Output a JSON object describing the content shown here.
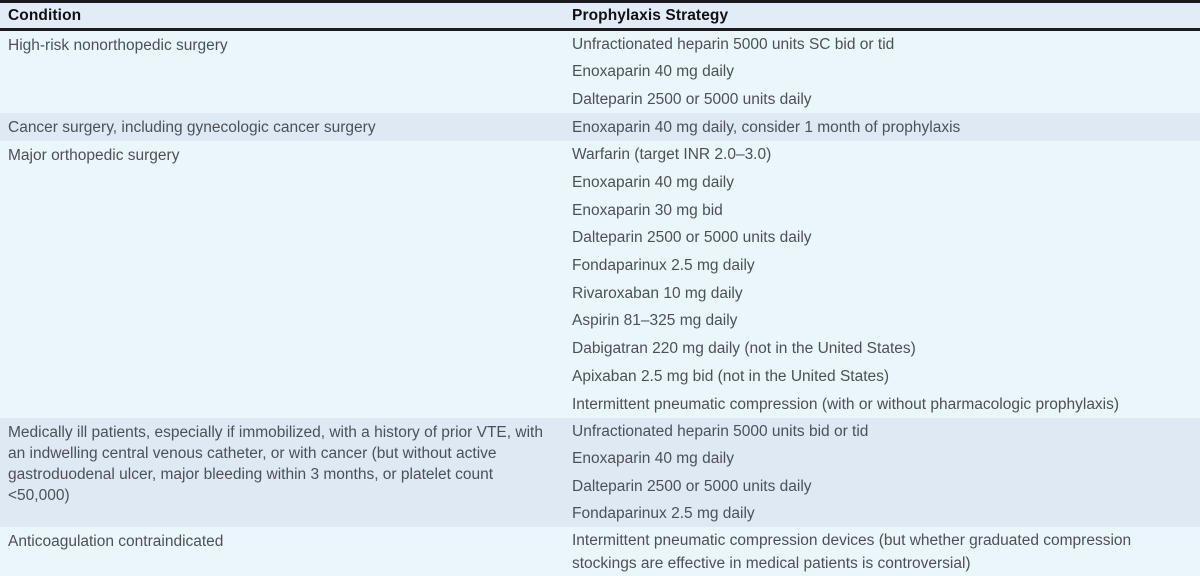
{
  "table": {
    "title_semantic": "VTE prophylaxis strategies by condition",
    "header": {
      "condition": "Condition",
      "strategy": "Prophylaxis Strategy"
    },
    "rows": [
      {
        "condition": "High-risk nonorthopedic surgery",
        "strategies": [
          "Unfractionated heparin 5000 units SC bid or tid",
          "Enoxaparin 40 mg daily",
          "Dalteparin 2500 or 5000 units daily"
        ]
      },
      {
        "condition": "Cancer surgery, including gynecologic cancer surgery",
        "strategies": [
          "Enoxaparin 40 mg daily, consider 1 month of prophylaxis"
        ]
      },
      {
        "condition": "Major orthopedic surgery",
        "strategies": [
          "Warfarin (target INR 2.0–3.0)",
          "Enoxaparin 40 mg daily",
          "Enoxaparin 30 mg bid",
          "Dalteparin 2500 or 5000 units daily",
          "Fondaparinux 2.5 mg daily",
          "Rivaroxaban 10 mg daily",
          "Aspirin 81–325 mg daily",
          "Dabigatran 220 mg daily (not in the United States)",
          "Apixaban 2.5 mg bid (not in the United States)",
          "Intermittent pneumatic compression (with or without pharmacologic prophylaxis)"
        ]
      },
      {
        "condition": "Medically ill patients, especially if immobilized, with a history of prior VTE, with an indwelling central venous catheter, or with cancer (but without active gastroduodenal ulcer, major bleeding within 3 months, or platelet count <50,000)",
        "strategies": [
          "Unfractionated heparin 5000 units bid or tid",
          "Enoxaparin 40 mg daily",
          "Dalteparin 2500 or 5000 units daily",
          "Fondaparinux 2.5 mg daily"
        ]
      },
      {
        "condition": "Anticoagulation contraindicated",
        "strategies": [
          "Intermittent pneumatic compression devices (but whether graduated compression stockings are effective in medical patients is controversial)"
        ]
      }
    ],
    "colors": {
      "header_bg": "#e2ecf7",
      "row_light": "#ebf5fc",
      "row_dark": "#dfe9f4",
      "border": "#1b1b1f",
      "body_text": "#4b5157",
      "header_text": "#101014"
    }
  }
}
